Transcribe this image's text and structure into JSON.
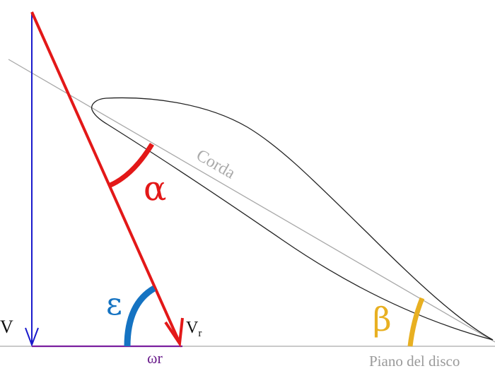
{
  "labels": {
    "alpha": "α",
    "beta": "β",
    "epsilon": "ε",
    "v": "V",
    "vr_main": "V",
    "vr_sub": "r",
    "omega_r": "ωr",
    "corda": "Corda",
    "piano_del_disco": "Piano del disco"
  },
  "colors": {
    "v_vector": "#1a1acc",
    "vr_vector": "#e31818",
    "omega_r_vector": "#7a1f9e",
    "alpha_arc": "#e31818",
    "epsilon_arc": "#1573c2",
    "beta_arc": "#e8b022",
    "airfoil_outline": "#222222",
    "chord_line": "#a8a8a8",
    "disc_plane": "#b8b8b8",
    "corda_text": "#aaaaaa",
    "piano_text": "#9a9a9a",
    "omega_r_text": "#6a1e8c"
  }
}
